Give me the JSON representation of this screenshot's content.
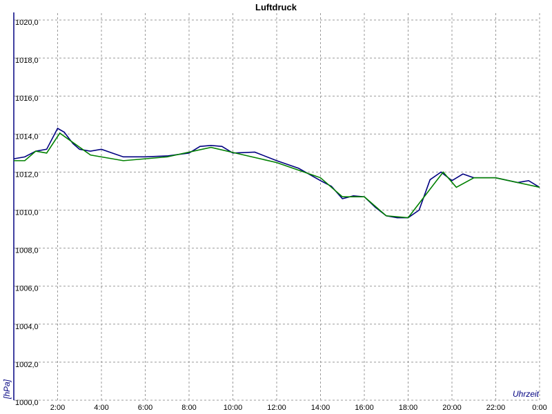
{
  "chart_data": {
    "type": "line",
    "title": "Luftdruck",
    "y_label": "[hPa]",
    "x_label": "Uhrzeit",
    "grid": true,
    "xlim": [
      0,
      24
    ],
    "xticks": [
      {
        "value": 2,
        "label": "2:00"
      },
      {
        "value": 4,
        "label": "4:00"
      },
      {
        "value": 6,
        "label": "6:00"
      },
      {
        "value": 8,
        "label": "8:00"
      },
      {
        "value": 10,
        "label": "10:00"
      },
      {
        "value": 12,
        "label": "12:00"
      },
      {
        "value": 14,
        "label": "14:00"
      },
      {
        "value": 16,
        "label": "16:00"
      },
      {
        "value": 18,
        "label": "18:00"
      },
      {
        "value": 20,
        "label": "20:00"
      },
      {
        "value": 22,
        "label": "22:00"
      },
      {
        "value": 24,
        "label": "0:00"
      }
    ],
    "ylim": [
      1000,
      1020
    ],
    "yticks": [
      {
        "value": 1000,
        "label": "1000,0"
      },
      {
        "value": 1002,
        "label": "1002,0"
      },
      {
        "value": 1004,
        "label": "1004,0"
      },
      {
        "value": 1006,
        "label": "1006,0"
      },
      {
        "value": 1008,
        "label": "1008,0"
      },
      {
        "value": 1010,
        "label": "1010,0"
      },
      {
        "value": 1012,
        "label": "1012,0"
      },
      {
        "value": 1014,
        "label": "1014,0"
      },
      {
        "value": 1016,
        "label": "1016,0"
      },
      {
        "value": 1018,
        "label": "1018,0"
      },
      {
        "value": 1020,
        "label": "1020,0"
      }
    ],
    "series": [
      {
        "color": "#000080",
        "x": [
          0,
          0.5,
          1,
          1.5,
          2,
          2.3,
          2.7,
          3,
          3.5,
          4,
          4.5,
          5,
          6,
          7,
          8,
          8.5,
          9,
          9.5,
          10,
          11,
          12,
          13,
          14,
          14.5,
          15,
          15.5,
          16,
          16.5,
          17,
          17.5,
          18,
          18.5,
          19,
          19.5,
          20,
          20.5,
          21,
          22,
          23,
          23.5,
          24
        ],
        "values": [
          1012.7,
          1012.8,
          1013.1,
          1013.2,
          1014.3,
          1014.1,
          1013.5,
          1013.2,
          1013.1,
          1013.2,
          1013.0,
          1012.8,
          1012.8,
          1012.85,
          1013.0,
          1013.35,
          1013.4,
          1013.35,
          1013.0,
          1013.05,
          1012.6,
          1012.2,
          1011.55,
          1011.25,
          1010.6,
          1010.75,
          1010.7,
          1010.15,
          1009.7,
          1009.6,
          1009.6,
          1010.0,
          1011.6,
          1012.0,
          1011.55,
          1011.9,
          1011.7,
          1011.7,
          1011.45,
          1011.55,
          1011.2
        ]
      },
      {
        "color": "#008000",
        "x": [
          0,
          0.5,
          1,
          1.5,
          2.1,
          3.5,
          5,
          7,
          9,
          10.5,
          12,
          14,
          15,
          16,
          17,
          18,
          19.6,
          20.2,
          21,
          22,
          24
        ],
        "values": [
          1012.6,
          1012.6,
          1013.1,
          1013.0,
          1014.05,
          1012.9,
          1012.6,
          1012.8,
          1013.3,
          1012.9,
          1012.5,
          1011.7,
          1010.7,
          1010.7,
          1009.7,
          1009.6,
          1012.0,
          1011.2,
          1011.7,
          1011.7,
          1011.2
        ]
      }
    ]
  }
}
